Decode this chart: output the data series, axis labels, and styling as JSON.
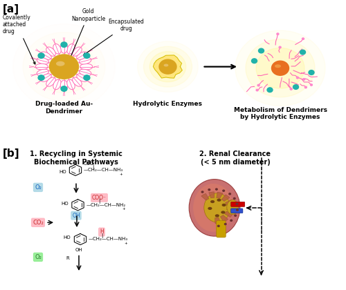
{
  "title_a": "[a]",
  "title_b": "[b]",
  "panel_a_labels": {
    "gold_nanoparticle": "Gold\nNanoparticle",
    "encapsulated_drug": "Encapsulated\ndrug",
    "covalently_attached": "Covalently\nattached\ndrug",
    "dendrimer_label": "Drug-loaded Au-\nDendrimer",
    "hydrolytic_enzymes": "Hydrolytic Enzymes",
    "metabolism_label": "Metabolism of Dendrimers\nby Hydrolytic Enzymes"
  },
  "panel_b_labels": {
    "recycling_title": "1. Recycling in Systemic\nBiochemical Pathways",
    "renal_title": "2. Renal Clearance\n(< 5 nm diameter)",
    "o2_1": "O₂",
    "coo_minus": "COO⁻",
    "oh": "OH",
    "co2": "CO₂",
    "h": "H",
    "o2_2": "O₂",
    "r": "R"
  },
  "colors": {
    "background": "#ffffff",
    "gold_core": "#DAA520",
    "gold_glow": "#FFD700",
    "dendrimer_arms": "#FF69B4",
    "teal_dots": "#20B2AA",
    "o2_box_1_bg": "#ADD8E6",
    "o2_box_1_fg": "#1565C0",
    "o2_box_2_bg": "#90EE90",
    "o2_box_2_fg": "#2E7D32",
    "coo_box_bg": "#FFB6C1",
    "coo_box_fg": "#C62828",
    "oh_box_bg": "#ADD8E6",
    "oh_box_fg": "#1565C0",
    "co2_box_bg": "#FFB6C1",
    "co2_box_fg": "#C62828",
    "h_box_bg": "#FFB6C1",
    "h_box_fg": "#C62828",
    "kidney_outer": "#C87070",
    "kidney_mid": "#A0522D",
    "kidney_cortex": "#CD853F",
    "kidney_pelvis": "#D2B48C",
    "ureter_color": "#C8A000",
    "vessel_red": "#CC0000",
    "vessel_blue": "#3050CC",
    "panel_label_font": 11,
    "section_title_font": 7,
    "label_font": 6,
    "chem_font": 5
  }
}
